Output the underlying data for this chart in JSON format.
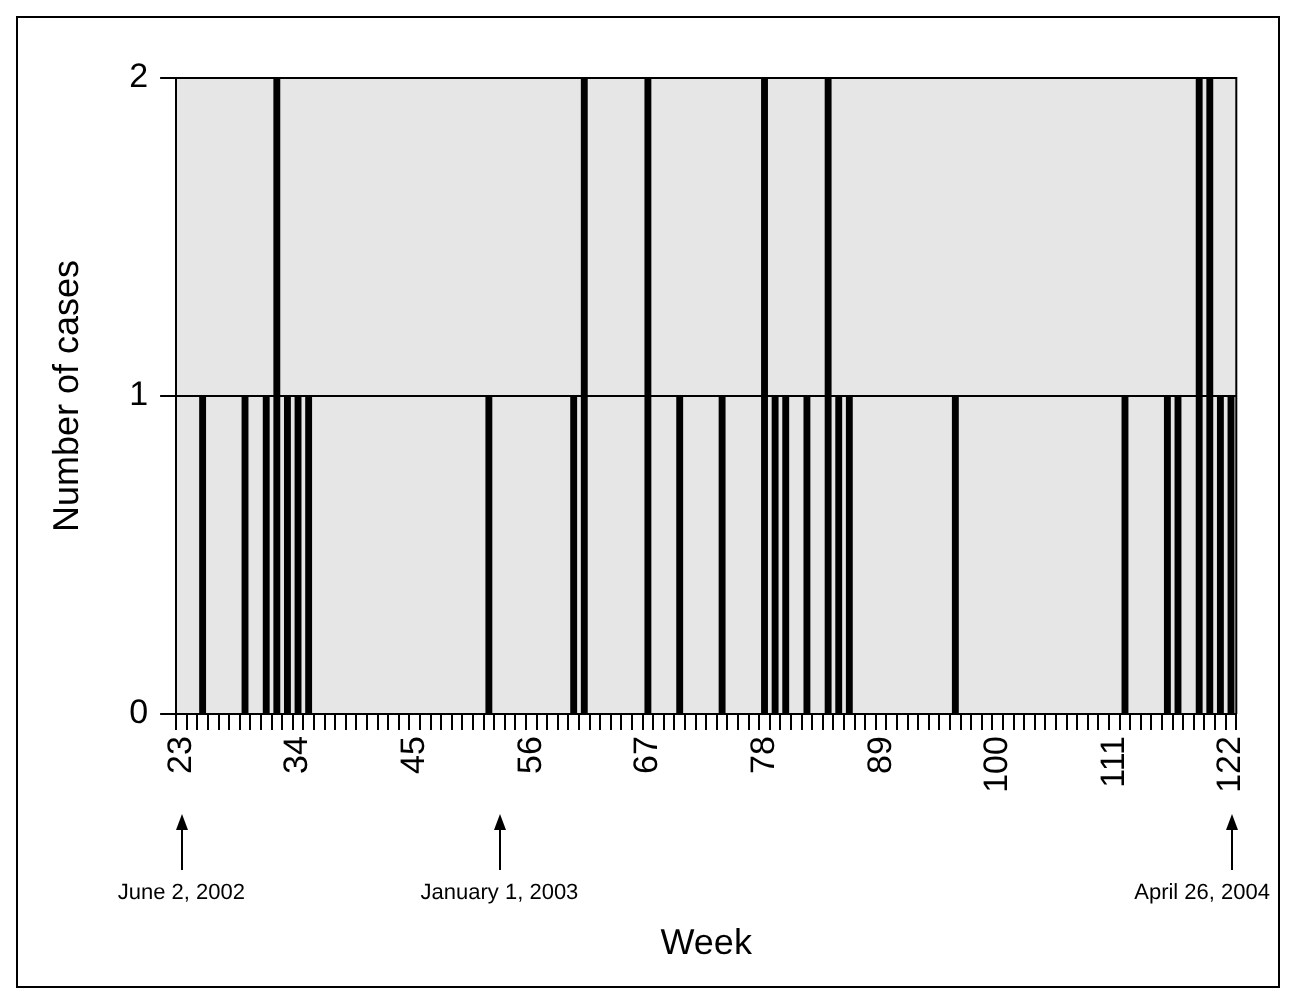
{
  "chart_data": {
    "type": "bar",
    "xlabel": "Week",
    "ylabel": "Number of cases",
    "categories": [
      "23",
      null,
      null,
      null,
      null,
      null,
      null,
      null,
      null,
      null,
      null,
      "34",
      null,
      null,
      null,
      null,
      null,
      null,
      null,
      null,
      null,
      null,
      "45",
      null,
      null,
      null,
      null,
      null,
      null,
      null,
      null,
      null,
      null,
      "56",
      null,
      null,
      null,
      null,
      null,
      null,
      null,
      null,
      null,
      null,
      "67",
      null,
      null,
      null,
      null,
      null,
      null,
      null,
      null,
      null,
      null,
      "78",
      null,
      null,
      null,
      null,
      null,
      null,
      null,
      null,
      null,
      null,
      "89",
      null,
      null,
      null,
      null,
      null,
      null,
      null,
      null,
      null,
      null,
      "100",
      null,
      null,
      null,
      null,
      null,
      null,
      null,
      null,
      null,
      null,
      "111",
      null,
      null,
      null,
      null,
      null,
      null,
      null,
      null,
      null,
      null,
      "122"
    ],
    "values": [
      0,
      0,
      1,
      0,
      0,
      0,
      1,
      0,
      1,
      2,
      1,
      1,
      1,
      0,
      0,
      0,
      0,
      0,
      0,
      0,
      0,
      0,
      0,
      0,
      0,
      0,
      0,
      0,
      0,
      1,
      0,
      0,
      0,
      0,
      0,
      0,
      0,
      1,
      2,
      0,
      0,
      0,
      0,
      0,
      2,
      0,
      0,
      1,
      0,
      0,
      0,
      1,
      0,
      0,
      0,
      2,
      1,
      1,
      0,
      1,
      0,
      2,
      1,
      1,
      0,
      0,
      0,
      0,
      0,
      0,
      0,
      0,
      0,
      1,
      0,
      0,
      0,
      0,
      0,
      0,
      0,
      0,
      0,
      0,
      0,
      0,
      0,
      0,
      0,
      1,
      0,
      0,
      0,
      1,
      1,
      0,
      2,
      2,
      1,
      1
    ],
    "color": "#000000",
    "ylim": [
      0,
      2
    ],
    "yticks": [
      0,
      1,
      2
    ],
    "grid": "y",
    "legend": false,
    "annotations": [
      "June 2, 2002",
      "January 1, 2003",
      "April 26, 2004"
    ]
  }
}
